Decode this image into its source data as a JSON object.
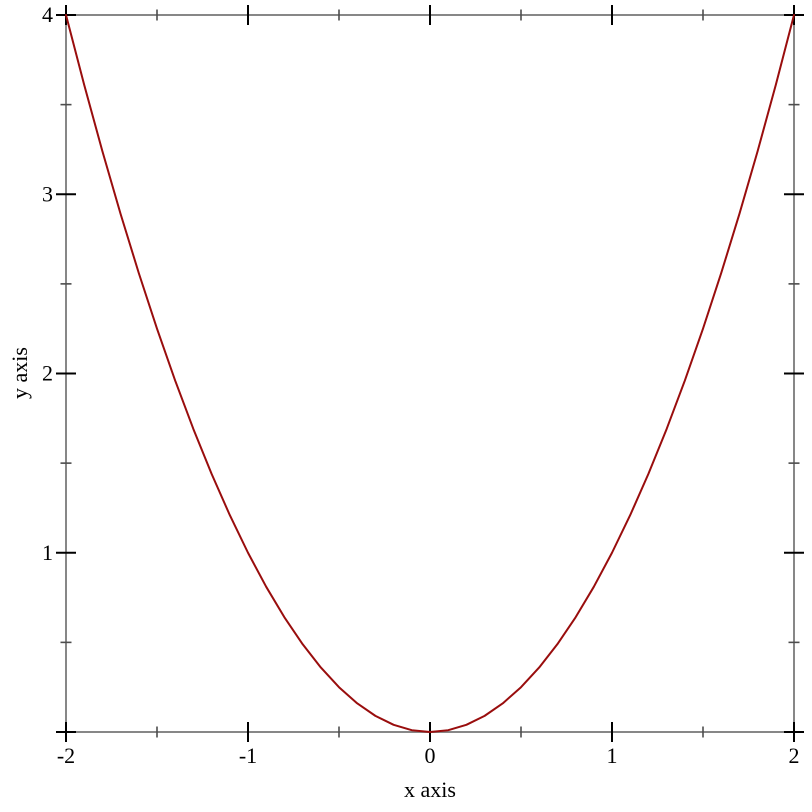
{
  "chart_data": {
    "type": "line",
    "title": "",
    "xlabel": "x axis",
    "ylabel": "y axis",
    "xlim": [
      -2,
      2
    ],
    "ylim": [
      0,
      4
    ],
    "grid": false,
    "legend": "none",
    "x_ticks": {
      "major": [
        -2,
        -1,
        0,
        1,
        2
      ],
      "major_labels": [
        "-2",
        "-1",
        "0",
        "1",
        "2"
      ],
      "minor": [
        -1.5,
        -0.5,
        0.5,
        1.5
      ]
    },
    "y_ticks": {
      "major": [
        0,
        1,
        2,
        3,
        4
      ],
      "major_labels": [
        "",
        "1",
        "2",
        "3",
        "4"
      ],
      "minor": [
        0.5,
        1.5,
        2.5,
        3.5
      ]
    },
    "series": [
      {
        "formula": "y = x^2",
        "color": "#990d0d",
        "points": [
          [
            -2,
            4
          ],
          [
            -1.9,
            3.61
          ],
          [
            -1.8,
            3.24
          ],
          [
            -1.7,
            2.89
          ],
          [
            -1.6,
            2.56
          ],
          [
            -1.5,
            2.25
          ],
          [
            -1.4,
            1.96
          ],
          [
            -1.3,
            1.69
          ],
          [
            -1.2,
            1.44
          ],
          [
            -1.1,
            1.21
          ],
          [
            -1,
            1
          ],
          [
            -0.9,
            0.81
          ],
          [
            -0.8,
            0.64
          ],
          [
            -0.7,
            0.49
          ],
          [
            -0.6,
            0.36
          ],
          [
            -0.5,
            0.25
          ],
          [
            -0.4,
            0.16
          ],
          [
            -0.3,
            0.09
          ],
          [
            -0.2,
            0.04
          ],
          [
            -0.1,
            0.01
          ],
          [
            0,
            0
          ],
          [
            0.1,
            0.01
          ],
          [
            0.2,
            0.04
          ],
          [
            0.3,
            0.09
          ],
          [
            0.4,
            0.16
          ],
          [
            0.5,
            0.25
          ],
          [
            0.6,
            0.36
          ],
          [
            0.7,
            0.49
          ],
          [
            0.8,
            0.64
          ],
          [
            0.9,
            0.81
          ],
          [
            1,
            1
          ],
          [
            1.1,
            1.21
          ],
          [
            1.2,
            1.44
          ],
          [
            1.3,
            1.69
          ],
          [
            1.4,
            1.96
          ],
          [
            1.5,
            2.25
          ],
          [
            1.6,
            2.56
          ],
          [
            1.7,
            2.89
          ],
          [
            1.8,
            3.24
          ],
          [
            1.9,
            3.61
          ],
          [
            2,
            4
          ]
        ]
      }
    ],
    "colors": {
      "background": "#ffffff",
      "frame": "#878787",
      "major_tick": "#000000",
      "minor_tick": "#4d4d4d",
      "text": "#000000"
    }
  }
}
